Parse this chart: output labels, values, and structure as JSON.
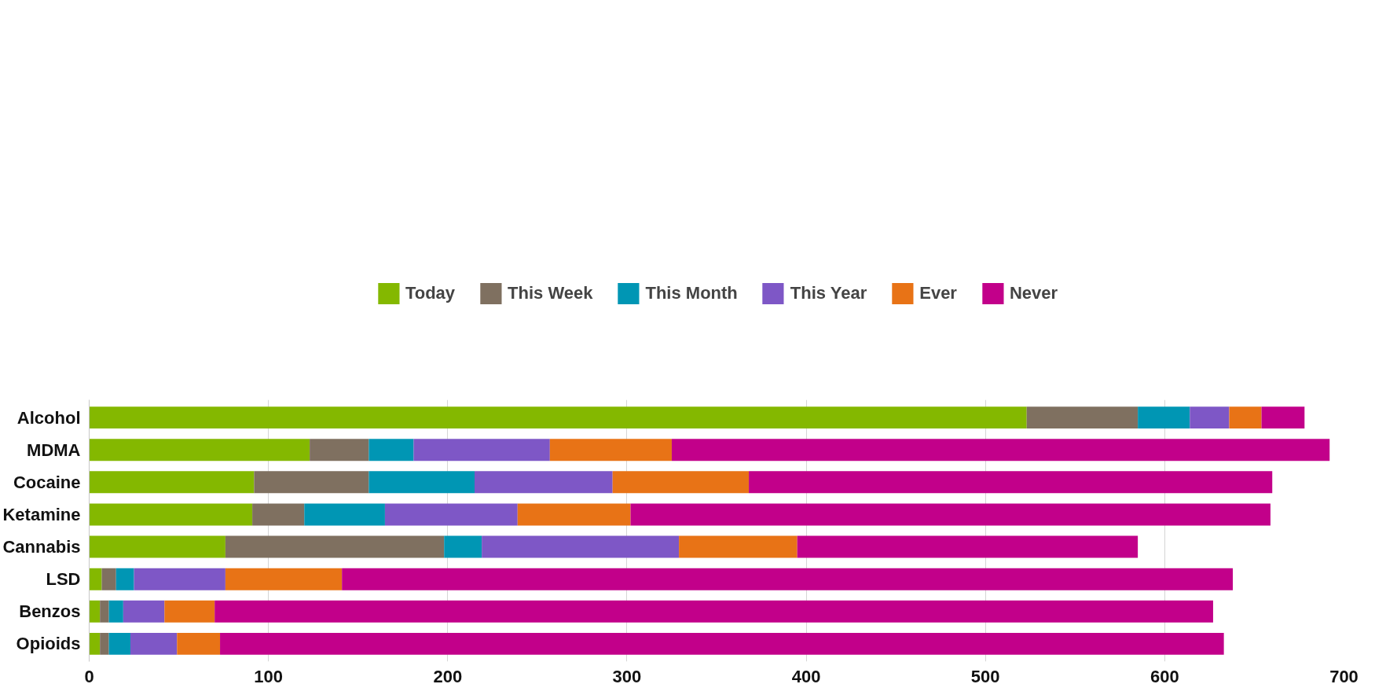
{
  "chart_data": {
    "type": "bar",
    "orientation": "horizontal",
    "stacked": true,
    "categories": [
      "Alcohol",
      "MDMA",
      "Cocaine",
      "Ketamine",
      "Cannabis",
      "LSD",
      "Benzos",
      "Opioids"
    ],
    "series": [
      {
        "name": "Today",
        "color": "#84b800",
        "values": [
          523,
          123,
          92,
          91,
          76,
          7,
          6,
          6
        ]
      },
      {
        "name": "This Week",
        "color": "#7f7060",
        "values": [
          62,
          33,
          64,
          29,
          122,
          8,
          5,
          5
        ]
      },
      {
        "name": "This Month",
        "color": "#0096b4",
        "values": [
          29,
          25,
          59,
          45,
          21,
          10,
          8,
          12
        ]
      },
      {
        "name": "This Year",
        "color": "#7e57c6",
        "values": [
          22,
          76,
          77,
          74,
          110,
          51,
          23,
          26
        ]
      },
      {
        "name": "Ever",
        "color": "#e87316",
        "values": [
          18,
          68,
          76,
          63,
          66,
          65,
          28,
          24
        ]
      },
      {
        "name": "Never",
        "color": "#c2008a",
        "values": [
          24,
          367,
          292,
          357,
          190,
          497,
          557,
          560
        ]
      }
    ],
    "xlim": [
      0,
      700
    ],
    "xticks": [
      0,
      100,
      200,
      300,
      400,
      500,
      600,
      700
    ],
    "grid": "x",
    "legend": "top"
  }
}
